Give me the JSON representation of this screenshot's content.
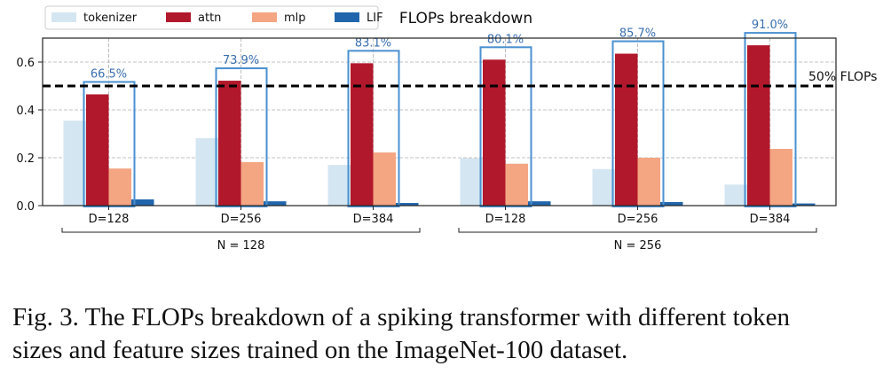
{
  "chart_data": {
    "type": "bar",
    "title": "FLOPs breakdown",
    "xlabel": "",
    "ylabel": "",
    "ylim": [
      0,
      0.7
    ],
    "yticks": [
      "0.0",
      "0.2",
      "0.4",
      "0.6"
    ],
    "legend_placement": "top-left",
    "grid": true,
    "categories": [
      "D=128",
      "D=256",
      "D=384",
      "D=128",
      "D=256",
      "D=384"
    ],
    "groups": [
      {
        "label": "N = 128",
        "categories": [
          0,
          1,
          2
        ]
      },
      {
        "label": "N = 256",
        "categories": [
          3,
          4,
          5
        ]
      }
    ],
    "series": [
      {
        "name": "tokenizer",
        "color": "#d4e6f1",
        "values": [
          0.355,
          0.282,
          0.17,
          0.198,
          0.153,
          0.088
        ]
      },
      {
        "name": "attn",
        "color": "#b2182b",
        "values": [
          0.465,
          0.522,
          0.595,
          0.61,
          0.635,
          0.67
        ]
      },
      {
        "name": "mlp",
        "color": "#f4a582",
        "values": [
          0.155,
          0.182,
          0.222,
          0.175,
          0.2,
          0.237
        ]
      },
      {
        "name": "LIF",
        "color": "#2166ac",
        "values": [
          0.026,
          0.018,
          0.011,
          0.018,
          0.015,
          0.009
        ]
      }
    ],
    "highlight_percent": [
      "66.5%",
      "73.9%",
      "83.1%",
      "80.1%",
      "85.7%",
      "91.0%"
    ],
    "threshold": {
      "value": 0.5,
      "label": "50% FLOPs"
    }
  },
  "caption": {
    "line1": "Fig. 3.  The FLOPs breakdown of a spiking transformer with different token",
    "line2": "sizes and feature sizes trained on the ImageNet-100 dataset."
  }
}
